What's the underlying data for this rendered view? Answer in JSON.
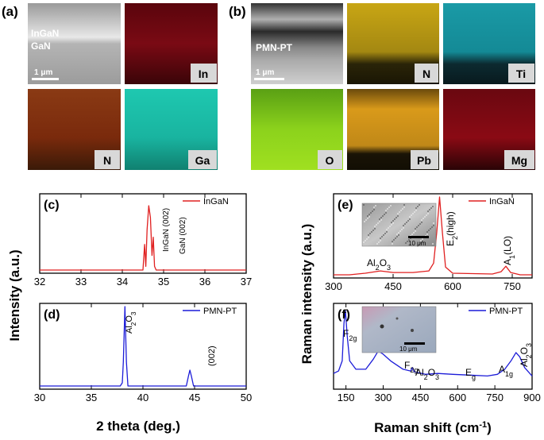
{
  "colors": {
    "red": "#e02020",
    "blue": "#1c1cd8",
    "in_map": "#7a0a14",
    "n_map": "#8a3a14",
    "ga_map": "#19b4a0",
    "n2_map": "#c8a614",
    "ti_map": "#1a9aa6",
    "o_map": "#8cd21c",
    "pb_map": "#d99a1a",
    "mg_map": "#8a0a14"
  },
  "panel_a": {
    "tag": "(a)",
    "sem_label_1": "InGaN",
    "sem_label_2": "GaN",
    "scale_bar": "1 μm",
    "maps": [
      "In",
      "N",
      "Ga"
    ]
  },
  "panel_b": {
    "tag": "(b)",
    "sem_label": "PMN-PT",
    "scale_bar": "1 μm",
    "maps": [
      "N",
      "Ti",
      "O",
      "Pb",
      "Mg"
    ]
  },
  "chart_data": [
    {
      "panel": "(c)",
      "type": "line",
      "title": "",
      "xlabel": "",
      "ylabel": "",
      "xlim": [
        32,
        37
      ],
      "xticks": [
        32,
        33,
        34,
        35,
        36,
        37
      ],
      "legend": "InGaN",
      "legend_position": "top-right",
      "series": [
        {
          "name": "InGaN",
          "points": [
            [
              32.0,
              0.0
            ],
            [
              34.5,
              0.0
            ],
            [
              34.54,
              0.35
            ],
            [
              34.57,
              0.05
            ],
            [
              34.6,
              0.55
            ],
            [
              34.64,
              0.88
            ],
            [
              34.68,
              0.72
            ],
            [
              34.72,
              0.2
            ],
            [
              34.75,
              0.45
            ],
            [
              34.78,
              0.05
            ],
            [
              34.82,
              0.0
            ],
            [
              37.0,
              0.0
            ]
          ]
        }
      ],
      "annotations": [
        "InGaN (002)",
        "GaN (002)"
      ]
    },
    {
      "panel": "(d)",
      "type": "line",
      "title": "",
      "xlabel": "2 theta (deg.)",
      "ylabel": "Intensity (a.u.)",
      "xlim": [
        30,
        50
      ],
      "xticks": [
        30,
        35,
        40,
        45,
        50
      ],
      "legend": "PMN-PT",
      "legend_position": "top-right",
      "series": [
        {
          "name": "PMN-PT",
          "points": [
            [
              30.0,
              0.0
            ],
            [
              37.8,
              0.0
            ],
            [
              38.0,
              0.04
            ],
            [
              38.1,
              0.3
            ],
            [
              38.25,
              1.0
            ],
            [
              38.4,
              0.3
            ],
            [
              38.55,
              0.0
            ],
            [
              44.2,
              0.0
            ],
            [
              44.4,
              0.12
            ],
            [
              44.55,
              0.2
            ],
            [
              44.7,
              0.12
            ],
            [
              44.9,
              0.0
            ],
            [
              50.0,
              0.0
            ]
          ]
        }
      ],
      "annotations": [
        "Al2O3",
        "(002)"
      ]
    },
    {
      "panel": "(e)",
      "type": "line",
      "title": "",
      "xlabel": "",
      "ylabel": "Raman intensity (a.u.)",
      "xlim": [
        300,
        800
      ],
      "xticks": [
        300,
        450,
        600,
        750
      ],
      "legend": "InGaN",
      "legend_position": "top-right",
      "inset_scale_bar": "10 μm",
      "series": [
        {
          "name": "InGaN",
          "points": [
            [
              300,
              0.0
            ],
            [
              340,
              0.0
            ],
            [
              380,
              0.02
            ],
            [
              418,
              0.05
            ],
            [
              450,
              0.03
            ],
            [
              500,
              0.03
            ],
            [
              540,
              0.05
            ],
            [
              552,
              0.15
            ],
            [
              560,
              0.55
            ],
            [
              567,
              1.0
            ],
            [
              574,
              0.55
            ],
            [
              582,
              0.1
            ],
            [
              600,
              0.02
            ],
            [
              700,
              0.01
            ],
            [
              722,
              0.04
            ],
            [
              734,
              0.11
            ],
            [
              746,
              0.03
            ],
            [
              770,
              0.0
            ],
            [
              800,
              0.0
            ]
          ]
        }
      ],
      "annotations": [
        "Al2O3",
        "E2(high)",
        "A1(LO)"
      ]
    },
    {
      "panel": "(f)",
      "type": "line",
      "title": "",
      "xlabel": "Raman shift (cm-1)",
      "ylabel": "Raman intensity (a.u.)",
      "xlim": [
        100,
        900
      ],
      "xticks": [
        150,
        300,
        450,
        600,
        750,
        900
      ],
      "legend": "PMN-PT",
      "legend_position": "top-right",
      "inset_scale_bar": "10 μm",
      "series": [
        {
          "name": "PMN-PT",
          "points": [
            [
              100,
              0.15
            ],
            [
              120,
              0.18
            ],
            [
              135,
              0.3
            ],
            [
              142,
              0.75
            ],
            [
              148,
              0.9
            ],
            [
              155,
              0.6
            ],
            [
              165,
              0.3
            ],
            [
              190,
              0.2
            ],
            [
              230,
              0.2
            ],
            [
              260,
              0.32
            ],
            [
              280,
              0.42
            ],
            [
              300,
              0.38
            ],
            [
              330,
              0.3
            ],
            [
              380,
              0.2
            ],
            [
              410,
              0.18
            ],
            [
              418,
              0.22
            ],
            [
              425,
              0.17
            ],
            [
              470,
              0.14
            ],
            [
              520,
              0.15
            ],
            [
              580,
              0.14
            ],
            [
              650,
              0.13
            ],
            [
              720,
              0.12
            ],
            [
              760,
              0.14
            ],
            [
              790,
              0.2
            ],
            [
              815,
              0.3
            ],
            [
              835,
              0.4
            ],
            [
              850,
              0.35
            ],
            [
              870,
              0.22
            ],
            [
              900,
              0.12
            ]
          ]
        }
      ],
      "annotations": [
        "F2g",
        "F2g",
        "Al2O3",
        "Eg",
        "A1g",
        "Al2O3"
      ]
    }
  ]
}
